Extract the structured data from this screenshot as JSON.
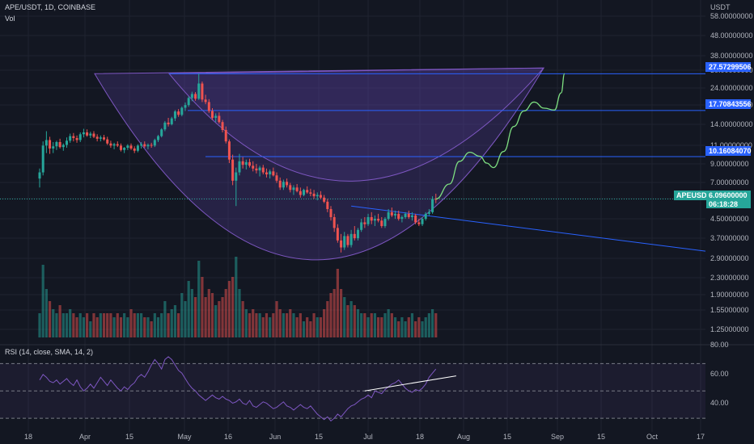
{
  "header": {
    "symbol_line": "APE/USDT, 1D, COINBASE",
    "vol_label": "Vol",
    "currency": "USDT",
    "rsi_label": "RSI (14, close, SMA, 14, 2)"
  },
  "colors": {
    "background": "#131722",
    "up": "#26a69a",
    "down": "#ef5350",
    "bowl_fill": "#5b3fa0",
    "bowl_stroke": "#7e57c2",
    "level_line": "#2962ff",
    "projection": "#7ee081",
    "rsi_line": "#7e57c2",
    "current_tag": "#26a69a"
  },
  "price_axis": {
    "ticks": [
      "58.00000000",
      "48.00000000",
      "38.00000000",
      "30.00000000",
      "24.00000000",
      "18.00000000",
      "14.00000000",
      "11.00000000",
      "9.00000000",
      "7.00000000",
      "5.90000000",
      "4.50000000",
      "3.70000000",
      "2.90000000",
      "2.30000000",
      "1.90000000",
      "1.55000000",
      "1.25000000"
    ]
  },
  "level_tags": [
    {
      "label": "27.57299506"
    },
    {
      "label": "17.70843556"
    },
    {
      "label": "10.16084070"
    }
  ],
  "current_price": {
    "symbol": "APEUSDT",
    "price": "6.09600000",
    "countdown": "06:18:28"
  },
  "rsi_axis": {
    "ticks": [
      "80.00",
      "60.00",
      "40.00"
    ]
  },
  "time_axis": {
    "ticks": [
      "18",
      "Apr",
      "15",
      "May",
      "16",
      "Jun",
      "15",
      "Jul",
      "18",
      "Aug",
      "15",
      "Sep",
      "15",
      "Oct",
      "17"
    ]
  },
  "chart_data": {
    "type": "candlestick",
    "symbol": "APE/USDT",
    "timeframe": "1D",
    "exchange": "COINBASE",
    "start_date": "2022-03-17",
    "price_scale": "log",
    "ylim": [
      1.15,
      62
    ],
    "ohlc": [
      [
        7.8,
        8.8,
        7.0,
        8.4
      ],
      [
        8.4,
        12.2,
        8.1,
        11.6
      ],
      [
        11.6,
        13.8,
        10.6,
        12.4
      ],
      [
        12.4,
        12.9,
        10.5,
        11.2
      ],
      [
        11.2,
        12.1,
        10.6,
        11.5
      ],
      [
        11.5,
        12.3,
        11.0,
        12.1
      ],
      [
        12.1,
        12.6,
        11.2,
        11.4
      ],
      [
        11.4,
        11.9,
        10.9,
        11.7
      ],
      [
        11.7,
        12.8,
        11.3,
        12.3
      ],
      [
        12.3,
        13.4,
        12.0,
        13.0
      ],
      [
        13.0,
        13.5,
        12.2,
        12.7
      ],
      [
        12.7,
        13.1,
        12.0,
        12.4
      ],
      [
        12.4,
        13.6,
        12.1,
        13.3
      ],
      [
        13.3,
        14.2,
        12.8,
        13.6
      ],
      [
        13.6,
        14.1,
        12.9,
        13.1
      ],
      [
        13.1,
        13.7,
        12.7,
        13.4
      ],
      [
        13.4,
        13.8,
        12.7,
        12.9
      ],
      [
        12.9,
        13.3,
        12.2,
        12.6
      ],
      [
        12.6,
        13.1,
        12.2,
        12.8
      ],
      [
        12.8,
        13.2,
        12.3,
        12.5
      ],
      [
        12.5,
        12.9,
        11.7,
        11.9
      ],
      [
        11.9,
        12.3,
        11.3,
        11.6
      ],
      [
        11.6,
        12.0,
        11.1,
        11.8
      ],
      [
        11.8,
        12.2,
        11.4,
        11.6
      ],
      [
        11.6,
        11.9,
        10.8,
        11.0
      ],
      [
        11.0,
        11.4,
        10.6,
        11.3
      ],
      [
        11.3,
        11.8,
        11.0,
        11.6
      ],
      [
        11.6,
        11.9,
        11.0,
        11.2
      ],
      [
        11.2,
        11.5,
        10.6,
        10.9
      ],
      [
        10.9,
        11.8,
        10.7,
        11.6
      ],
      [
        11.6,
        12.1,
        11.2,
        11.8
      ],
      [
        11.8,
        12.2,
        11.3,
        11.5
      ],
      [
        11.5,
        11.9,
        11.1,
        11.7
      ],
      [
        11.7,
        12.0,
        11.3,
        11.6
      ],
      [
        11.6,
        12.6,
        11.4,
        12.4
      ],
      [
        12.4,
        13.2,
        12.1,
        13.0
      ],
      [
        13.0,
        14.3,
        12.8,
        14.1
      ],
      [
        14.1,
        15.6,
        13.8,
        15.3
      ],
      [
        15.3,
        16.2,
        14.6,
        15.0
      ],
      [
        15.0,
        16.4,
        14.8,
        16.1
      ],
      [
        16.1,
        17.8,
        15.6,
        17.5
      ],
      [
        17.5,
        18.0,
        16.4,
        16.8
      ],
      [
        16.8,
        18.6,
        16.5,
        18.3
      ],
      [
        18.3,
        19.5,
        17.6,
        18.9
      ],
      [
        18.9,
        21.0,
        18.5,
        20.6
      ],
      [
        20.6,
        22.2,
        19.8,
        21.6
      ],
      [
        21.6,
        22.1,
        19.9,
        20.4
      ],
      [
        20.4,
        27.6,
        20.1,
        24.5
      ],
      [
        24.5,
        25.1,
        19.6,
        20.2
      ],
      [
        20.2,
        21.4,
        19.1,
        19.6
      ],
      [
        19.6,
        20.3,
        17.2,
        17.6
      ],
      [
        17.6,
        18.2,
        15.8,
        16.2
      ],
      [
        16.2,
        17.1,
        15.4,
        16.6
      ],
      [
        16.6,
        17.3,
        15.1,
        15.4
      ],
      [
        15.4,
        15.8,
        13.6,
        14.0
      ],
      [
        14.0,
        14.6,
        11.9,
        12.2
      ],
      [
        12.2,
        12.5,
        9.4,
        9.8
      ],
      [
        9.8,
        10.4,
        7.2,
        7.6
      ],
      [
        7.6,
        8.9,
        5.6,
        8.4
      ],
      [
        8.4,
        10.5,
        8.1,
        9.6
      ],
      [
        9.6,
        10.1,
        8.8,
        9.2
      ],
      [
        9.2,
        9.8,
        8.7,
        9.5
      ],
      [
        9.5,
        9.9,
        8.9,
        9.1
      ],
      [
        9.1,
        9.6,
        8.5,
        8.8
      ],
      [
        8.8,
        9.3,
        8.3,
        8.6
      ],
      [
        8.6,
        9.1,
        8.0,
        8.9
      ],
      [
        8.9,
        9.2,
        8.2,
        8.4
      ],
      [
        8.4,
        8.8,
        7.9,
        8.2
      ],
      [
        8.2,
        8.7,
        7.8,
        8.5
      ],
      [
        8.5,
        8.9,
        8.0,
        8.1
      ],
      [
        8.1,
        8.4,
        7.4,
        7.6
      ],
      [
        7.6,
        7.9,
        6.8,
        7.0
      ],
      [
        7.0,
        7.7,
        6.8,
        7.5
      ],
      [
        7.5,
        7.8,
        7.0,
        7.2
      ],
      [
        7.2,
        7.4,
        6.6,
        6.8
      ],
      [
        6.8,
        7.2,
        6.4,
        7.0
      ],
      [
        7.0,
        7.3,
        6.6,
        6.7
      ],
      [
        6.7,
        7.0,
        6.2,
        6.4
      ],
      [
        6.4,
        6.9,
        6.3,
        6.8
      ],
      [
        6.8,
        7.1,
        6.5,
        6.6
      ],
      [
        6.6,
        6.9,
        6.3,
        6.5
      ],
      [
        6.5,
        6.8,
        6.1,
        6.3
      ],
      [
        6.3,
        6.6,
        6.0,
        6.4
      ],
      [
        6.4,
        6.7,
        6.1,
        6.2
      ],
      [
        6.2,
        6.4,
        5.8,
        5.9
      ],
      [
        5.9,
        6.1,
        5.2,
        5.4
      ],
      [
        5.4,
        5.6,
        4.7,
        4.9
      ],
      [
        4.9,
        5.1,
        4.1,
        4.3
      ],
      [
        4.3,
        4.5,
        3.6,
        3.7
      ],
      [
        3.7,
        4.0,
        3.2,
        3.4
      ],
      [
        3.4,
        4.1,
        3.3,
        3.9
      ],
      [
        3.9,
        4.0,
        3.4,
        3.5
      ],
      [
        3.5,
        4.2,
        3.4,
        4.0
      ],
      [
        4.0,
        4.4,
        3.7,
        3.8
      ],
      [
        3.8,
        4.3,
        3.7,
        4.2
      ],
      [
        4.2,
        4.8,
        4.1,
        4.6
      ],
      [
        4.6,
        4.9,
        4.3,
        4.5
      ],
      [
        4.5,
        5.1,
        4.4,
        4.9
      ],
      [
        4.9,
        5.2,
        4.5,
        4.7
      ],
      [
        4.7,
        5.0,
        4.4,
        4.8
      ],
      [
        4.8,
        5.1,
        4.6,
        4.7
      ],
      [
        4.7,
        4.9,
        4.3,
        4.4
      ],
      [
        4.4,
        4.9,
        4.3,
        4.8
      ],
      [
        4.8,
        5.4,
        4.7,
        5.2
      ],
      [
        5.2,
        5.5,
        4.9,
        5.0
      ],
      [
        5.0,
        5.3,
        4.8,
        5.1
      ],
      [
        5.1,
        5.3,
        4.7,
        4.8
      ],
      [
        4.8,
        5.0,
        4.6,
        4.9
      ],
      [
        4.9,
        5.2,
        4.8,
        5.1
      ],
      [
        5.1,
        5.3,
        4.8,
        4.9
      ],
      [
        4.9,
        5.2,
        4.7,
        5.0
      ],
      [
        5.0,
        5.1,
        4.5,
        4.6
      ],
      [
        4.6,
        4.8,
        4.4,
        4.5
      ],
      [
        4.5,
        4.9,
        4.4,
        4.8
      ],
      [
        4.8,
        5.2,
        4.7,
        5.1
      ],
      [
        5.1,
        5.4,
        5.0,
        5.2
      ],
      [
        5.2,
        6.3,
        5.1,
        6.1
      ],
      [
        6.1,
        6.5,
        5.8,
        6.096
      ]
    ],
    "volume_levels": [
      0.3,
      0.9,
      0.6,
      0.45,
      0.35,
      0.3,
      0.4,
      0.3,
      0.3,
      0.35,
      0.3,
      0.25,
      0.3,
      0.25,
      0.3,
      0.2,
      0.3,
      0.25,
      0.3,
      0.3,
      0.3,
      0.3,
      0.25,
      0.3,
      0.25,
      0.3,
      0.25,
      0.35,
      0.3,
      0.3,
      0.3,
      0.25,
      0.25,
      0.2,
      0.3,
      0.25,
      0.3,
      0.45,
      0.3,
      0.35,
      0.4,
      0.3,
      0.55,
      0.45,
      0.7,
      0.6,
      0.5,
      0.95,
      0.75,
      0.5,
      0.6,
      0.55,
      0.4,
      0.45,
      0.5,
      0.6,
      0.7,
      0.75,
      1.0,
      0.6,
      0.45,
      0.35,
      0.3,
      0.35,
      0.3,
      0.3,
      0.25,
      0.3,
      0.25,
      0.3,
      0.45,
      0.35,
      0.3,
      0.3,
      0.35,
      0.3,
      0.25,
      0.3,
      0.2,
      0.25,
      0.2,
      0.3,
      0.25,
      0.25,
      0.35,
      0.45,
      0.55,
      0.6,
      0.85,
      0.6,
      0.5,
      0.4,
      0.45,
      0.4,
      0.35,
      0.3,
      0.3,
      0.25,
      0.3,
      0.3,
      0.25,
      0.25,
      0.3,
      0.35,
      0.3,
      0.25,
      0.2,
      0.25,
      0.2,
      0.25,
      0.3,
      0.2,
      0.25,
      0.2,
      0.25,
      0.3,
      0.35,
      0.3
    ],
    "rsi": [
      58,
      62,
      60,
      57,
      56,
      58,
      55,
      57,
      59,
      56,
      54,
      58,
      53,
      50,
      52,
      55,
      52,
      56,
      60,
      57,
      54,
      58,
      55,
      52,
      50,
      53,
      51,
      54,
      56,
      60,
      62,
      60,
      64,
      69,
      73,
      70,
      66,
      73,
      75,
      73,
      69,
      65,
      63,
      59,
      55,
      52,
      50,
      47,
      45,
      43,
      45,
      47,
      45,
      44,
      46,
      44,
      43,
      41,
      42,
      44,
      41,
      40,
      43,
      39,
      38,
      40,
      42,
      41,
      39,
      37,
      38,
      40,
      42,
      39,
      38,
      36,
      38,
      40,
      38,
      37,
      39,
      36,
      33,
      31,
      29,
      31,
      28,
      30,
      33,
      31,
      34,
      37,
      39,
      40,
      42,
      44,
      45,
      47,
      45,
      50,
      49,
      48,
      51,
      53,
      55,
      56,
      58,
      55,
      52,
      50,
      49,
      51,
      50,
      52,
      55,
      60,
      63,
      66
    ],
    "levels": [
      27.57299506,
      17.70843556,
      10.1608407
    ],
    "current_price": 6.096,
    "projection_path": [
      [
        117,
        6.1
      ],
      [
        121,
        7.3
      ],
      [
        124,
        9.6
      ],
      [
        127,
        10.7
      ],
      [
        130,
        10.2
      ],
      [
        132,
        9.4
      ],
      [
        134,
        8.9
      ],
      [
        137,
        10.8
      ],
      [
        140,
        14.6
      ],
      [
        143,
        17.6
      ],
      [
        146,
        19.6
      ],
      [
        149,
        18.2
      ],
      [
        152,
        17.8
      ],
      [
        154,
        21.9
      ],
      [
        155,
        27.6
      ]
    ],
    "bowl": {
      "outer_top": 27.6,
      "inner_top": 27.6,
      "bottom": 3.1
    },
    "rsi_ylim": [
      20,
      85
    ],
    "rsi_levels": [
      70,
      50,
      30
    ],
    "rsi_trendline": [
      [
        96,
        50
      ],
      [
        123,
        61
      ]
    ]
  }
}
